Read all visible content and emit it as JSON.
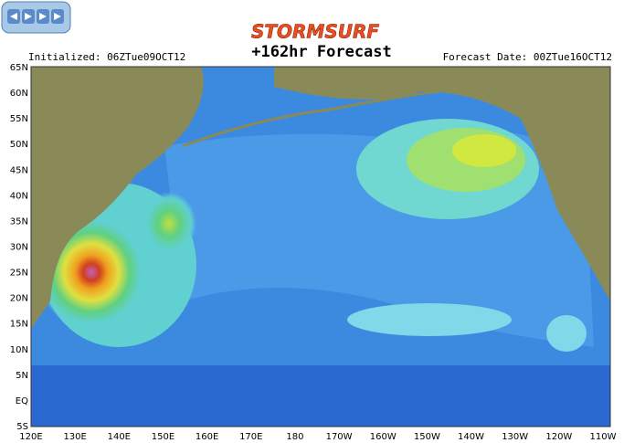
{
  "header": {
    "brand": "STORMSURF",
    "title": "+162hr Forecast",
    "initialized": "Initialized: 06ZTue09OCT12",
    "forecast_date": "Forecast Date: 00ZTue16OCT12"
  },
  "map": {
    "lat_labels": [
      "65N",
      "60N",
      "55N",
      "50N",
      "45N",
      "40N",
      "35N",
      "30N",
      "25N",
      "20N",
      "15N",
      "10N",
      "5N",
      "EQ",
      "5S"
    ],
    "lon_labels": [
      "120E",
      "130E",
      "140E",
      "150E",
      "160E",
      "170E",
      "180",
      "170W",
      "160W",
      "150W",
      "140W",
      "130W",
      "120W",
      "110W"
    ]
  }
}
